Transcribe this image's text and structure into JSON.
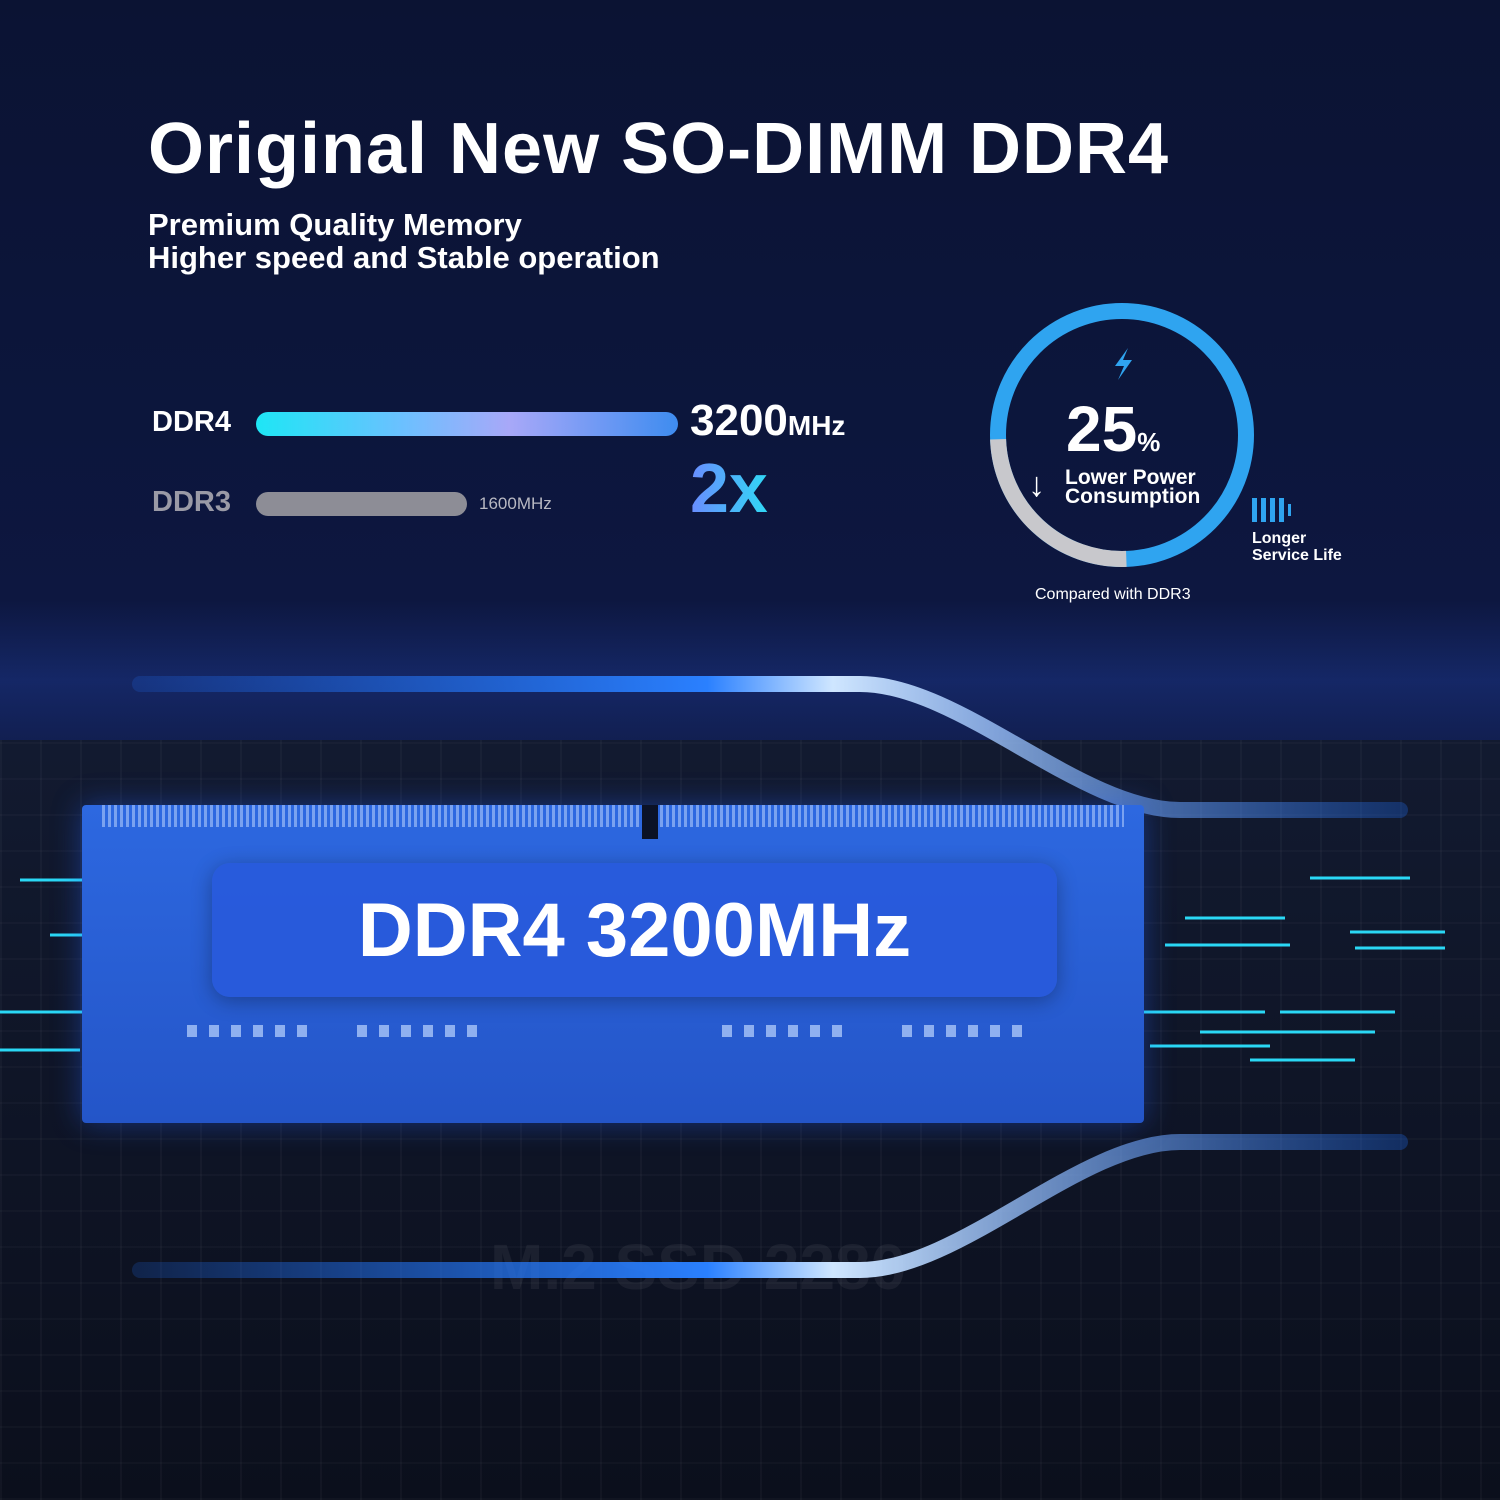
{
  "header": {
    "title": "Original New SO-DIMM DDR4",
    "subtitle_1": "Premium Quality Memory",
    "subtitle_2": "Higher speed and Stable operation"
  },
  "comparison": {
    "ddr4": {
      "label": "DDR4",
      "value": "3200",
      "unit": "MHz",
      "bar_fraction": 1.0
    },
    "ddr3": {
      "label": "DDR3",
      "value": "1600MHz",
      "bar_fraction": 0.5
    },
    "multiplier": "2x"
  },
  "power": {
    "value": "25",
    "unit": "%",
    "line_1": "Lower Power",
    "line_2": "Consumption",
    "note": "Compared with DDR3",
    "reduction_fraction": 0.25,
    "icon": "lightning-bolt-icon",
    "arrow_icon": "arrow-down-icon"
  },
  "service": {
    "line_1": "Longer",
    "line_2": "Service Life",
    "icon": "battery-icon"
  },
  "module": {
    "label": "DDR4 3200MHz"
  },
  "background": {
    "ssd_text": "M.2 SSD 2280"
  },
  "colors": {
    "accent_blue": "#2fa4f0",
    "ring_gray": "#c8c8cc",
    "cyan": "#1ee6f5",
    "module_blue": "#2d68e0",
    "bg": "#0b1333"
  }
}
